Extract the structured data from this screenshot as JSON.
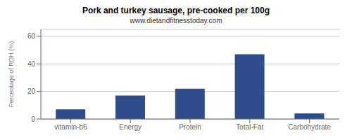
{
  "chart_data": {
    "type": "bar",
    "title": "Pork and turkey sausage, pre-cooked per 100g",
    "subtitle": "www.dietandfitnesstoday.com",
    "categories": [
      "vitamin-b6",
      "Energy",
      "Protein",
      "Total-Fat",
      "Carbohydrate"
    ],
    "values": [
      7,
      17,
      22,
      47,
      4
    ],
    "color": "#2e4d8a",
    "ylabel": "Percentage of RDH (%)",
    "ylim": [
      0,
      65
    ],
    "yticks": [
      0,
      20,
      40,
      60
    ],
    "grid": true
  }
}
